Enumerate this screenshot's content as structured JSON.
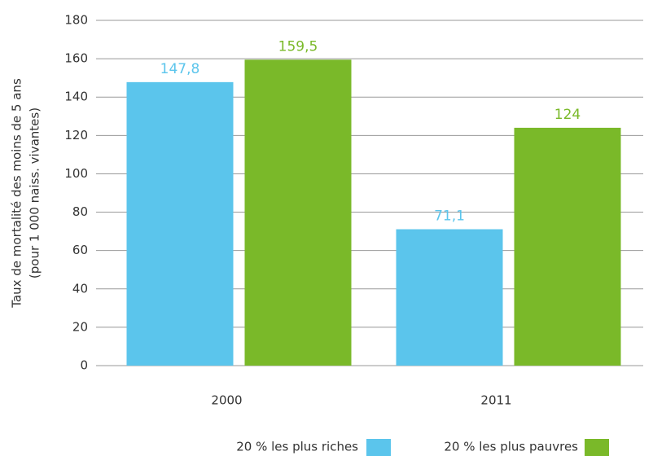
{
  "chart_data": {
    "type": "bar",
    "ylabel": [
      "Taux de mortalité des moins de 5 ans",
      "(pour 1 000 naiss. vivantes)"
    ],
    "categories": [
      "2000",
      "2011"
    ],
    "series": [
      {
        "name": "20 % les plus riches",
        "color": "#5bc5ec",
        "values": [
          147.8,
          71.1
        ],
        "value_labels": [
          "147,8",
          "71,1"
        ]
      },
      {
        "name": "20 % les plus pauvres",
        "color": "#7ab929",
        "values": [
          159.5,
          124
        ],
        "value_labels": [
          "159,5",
          "124"
        ]
      }
    ],
    "ylim": [
      0,
      180
    ],
    "yticks": [
      0,
      20,
      40,
      60,
      80,
      100,
      120,
      140,
      160,
      180
    ],
    "grid": true
  }
}
